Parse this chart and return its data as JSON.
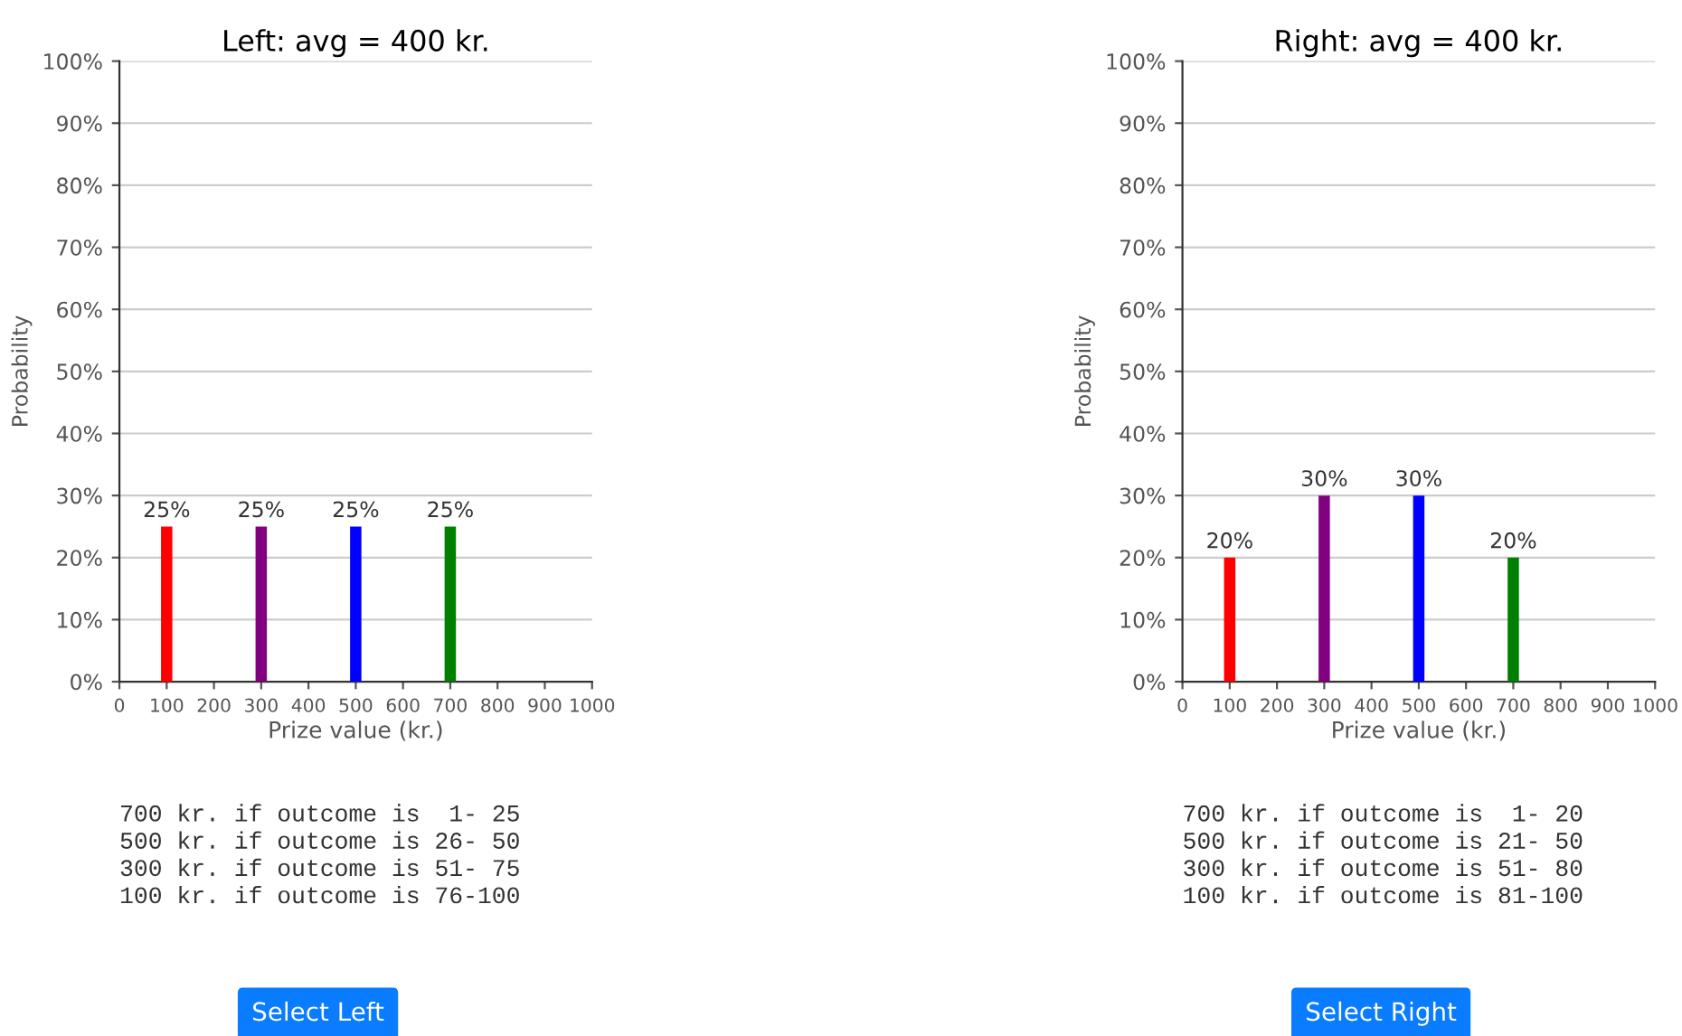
{
  "chart_data": [
    {
      "type": "bar",
      "title": "Left: avg = 400 kr.",
      "xlabel": "Prize value (kr.)",
      "ylabel": "Probability",
      "x": [
        100,
        300,
        500,
        700
      ],
      "values": [
        25,
        25,
        25,
        25
      ],
      "colors": [
        "#ff0000",
        "#800080",
        "#0000ff",
        "#008000"
      ],
      "value_labels": [
        "25%",
        "25%",
        "25%",
        "25%"
      ],
      "xlim": [
        0,
        1000
      ],
      "xticks": [
        0,
        100,
        200,
        300,
        400,
        500,
        600,
        700,
        800,
        900,
        1000
      ],
      "ylim": [
        0,
        100
      ],
      "yticks": [
        {
          "value": 0,
          "label": "0%"
        },
        {
          "value": 10,
          "label": "10%"
        },
        {
          "value": 20,
          "label": "20%"
        },
        {
          "value": 30,
          "label": "30%"
        },
        {
          "value": 40,
          "label": "40%"
        },
        {
          "value": 50,
          "label": "50%"
        },
        {
          "value": 60,
          "label": "60%"
        },
        {
          "value": 70,
          "label": "70%"
        },
        {
          "value": 80,
          "label": "80%"
        },
        {
          "value": 90,
          "label": "90%"
        },
        {
          "value": 100,
          "label": "100%"
        }
      ],
      "grid": "y",
      "annotations": [
        "700 kr. if outcome is  1- 25",
        "500 kr. if outcome is 26- 50",
        "300 kr. if outcome is 51- 75",
        "100 kr. if outcome is 76-100",
        "Select Left"
      ]
    },
    {
      "type": "bar",
      "title": "Right: avg = 400 kr.",
      "xlabel": "Prize value (kr.)",
      "ylabel": "Probability",
      "x": [
        100,
        300,
        500,
        700
      ],
      "values": [
        20,
        30,
        30,
        20
      ],
      "colors": [
        "#ff0000",
        "#800080",
        "#0000ff",
        "#008000"
      ],
      "value_labels": [
        "20%",
        "30%",
        "30%",
        "20%"
      ],
      "xlim": [
        0,
        1000
      ],
      "xticks": [
        0,
        100,
        200,
        300,
        400,
        500,
        600,
        700,
        800,
        900,
        1000
      ],
      "ylim": [
        0,
        100
      ],
      "yticks": [
        {
          "value": 0,
          "label": "0%"
        },
        {
          "value": 10,
          "label": "10%"
        },
        {
          "value": 20,
          "label": "20%"
        },
        {
          "value": 30,
          "label": "30%"
        },
        {
          "value": 40,
          "label": "40%"
        },
        {
          "value": 50,
          "label": "50%"
        },
        {
          "value": 60,
          "label": "60%"
        },
        {
          "value": 70,
          "label": "70%"
        },
        {
          "value": 80,
          "label": "80%"
        },
        {
          "value": 90,
          "label": "90%"
        },
        {
          "value": 100,
          "label": "100%"
        }
      ],
      "grid": "y",
      "annotations": [
        "700 kr. if outcome is  1- 20",
        "500 kr. if outcome is 21- 50",
        "300 kr. if outcome is 51- 80",
        "100 kr. if outcome is 81-100",
        "Select Right"
      ]
    }
  ]
}
